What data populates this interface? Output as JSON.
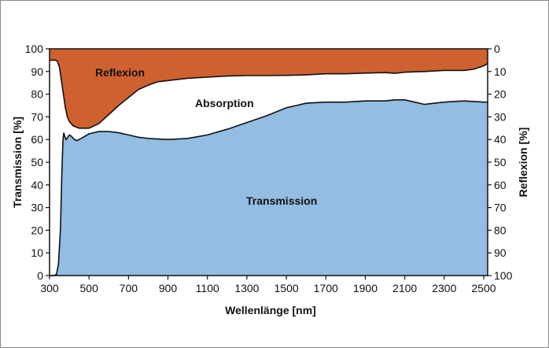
{
  "chart_data": {
    "type": "area",
    "xlabel": "Wellenlänge [nm]",
    "ylabel_left": "Transmission [%]",
    "ylabel_right": "Reflexion [%]",
    "xlim": [
      300,
      2520
    ],
    "ylim_left": [
      0,
      100
    ],
    "ylim_right": [
      100,
      0
    ],
    "x_ticks": [
      300,
      500,
      700,
      900,
      1100,
      1300,
      1500,
      1700,
      1900,
      2100,
      2300,
      2500
    ],
    "y_ticks_left": [
      0,
      10,
      20,
      30,
      40,
      50,
      60,
      70,
      80,
      90,
      100
    ],
    "y_ticks_right": [
      100,
      90,
      80,
      70,
      60,
      50,
      40,
      30,
      20,
      10,
      0
    ],
    "region_labels": {
      "reflexion": "Reflexion",
      "absorption": "Absorption",
      "transmission": "Transmission"
    },
    "colors": {
      "transmission": "#93bde2",
      "reflexion": "#cf6130",
      "absorption": "#ffffff",
      "line": "#111111"
    },
    "series": [
      {
        "name": "Transmission",
        "x": [
          300,
          320,
          335,
          345,
          355,
          362,
          368,
          372,
          378,
          384,
          392,
          400,
          410,
          420,
          430,
          440,
          450,
          470,
          500,
          550,
          600,
          650,
          700,
          750,
          800,
          850,
          900,
          950,
          1000,
          1100,
          1200,
          1300,
          1400,
          1500,
          1600,
          1700,
          1800,
          1900,
          2000,
          2050,
          2100,
          2150,
          2200,
          2250,
          2300,
          2400,
          2500,
          2520
        ],
        "values": [
          0,
          0,
          0.5,
          5,
          20,
          45,
          60,
          63,
          61,
          60,
          61,
          62,
          61.5,
          60.5,
          59.8,
          59.5,
          60,
          61,
          62.5,
          63.5,
          63.5,
          63,
          62,
          61,
          60.5,
          60.2,
          60,
          60.2,
          60.5,
          62,
          64.5,
          67.5,
          70.5,
          74,
          76,
          76.5,
          76.5,
          77,
          77,
          77.5,
          77.5,
          76.5,
          75.5,
          76,
          76.5,
          77,
          76.5,
          76.5
        ]
      },
      {
        "name": "Reflexion",
        "x": [
          300,
          320,
          330,
          340,
          350,
          360,
          370,
          380,
          390,
          400,
          420,
          450,
          500,
          550,
          600,
          650,
          700,
          750,
          800,
          850,
          900,
          1000,
          1100,
          1200,
          1300,
          1400,
          1500,
          1600,
          1700,
          1800,
          1900,
          2000,
          2050,
          2100,
          2200,
          2300,
          2400,
          2450,
          2500,
          2520
        ],
        "values": [
          5,
          5,
          5,
          5.5,
          8,
          14,
          20,
          26,
          30,
          32,
          34,
          35,
          35,
          33,
          29,
          25,
          21.5,
          18,
          16,
          14.5,
          14,
          13,
          12.5,
          12,
          11.8,
          11.8,
          11.7,
          11.5,
          11,
          11,
          10.7,
          10.5,
          10.8,
          10.3,
          10,
          9.5,
          9.5,
          9,
          7.5,
          6.5
        ]
      }
    ]
  }
}
